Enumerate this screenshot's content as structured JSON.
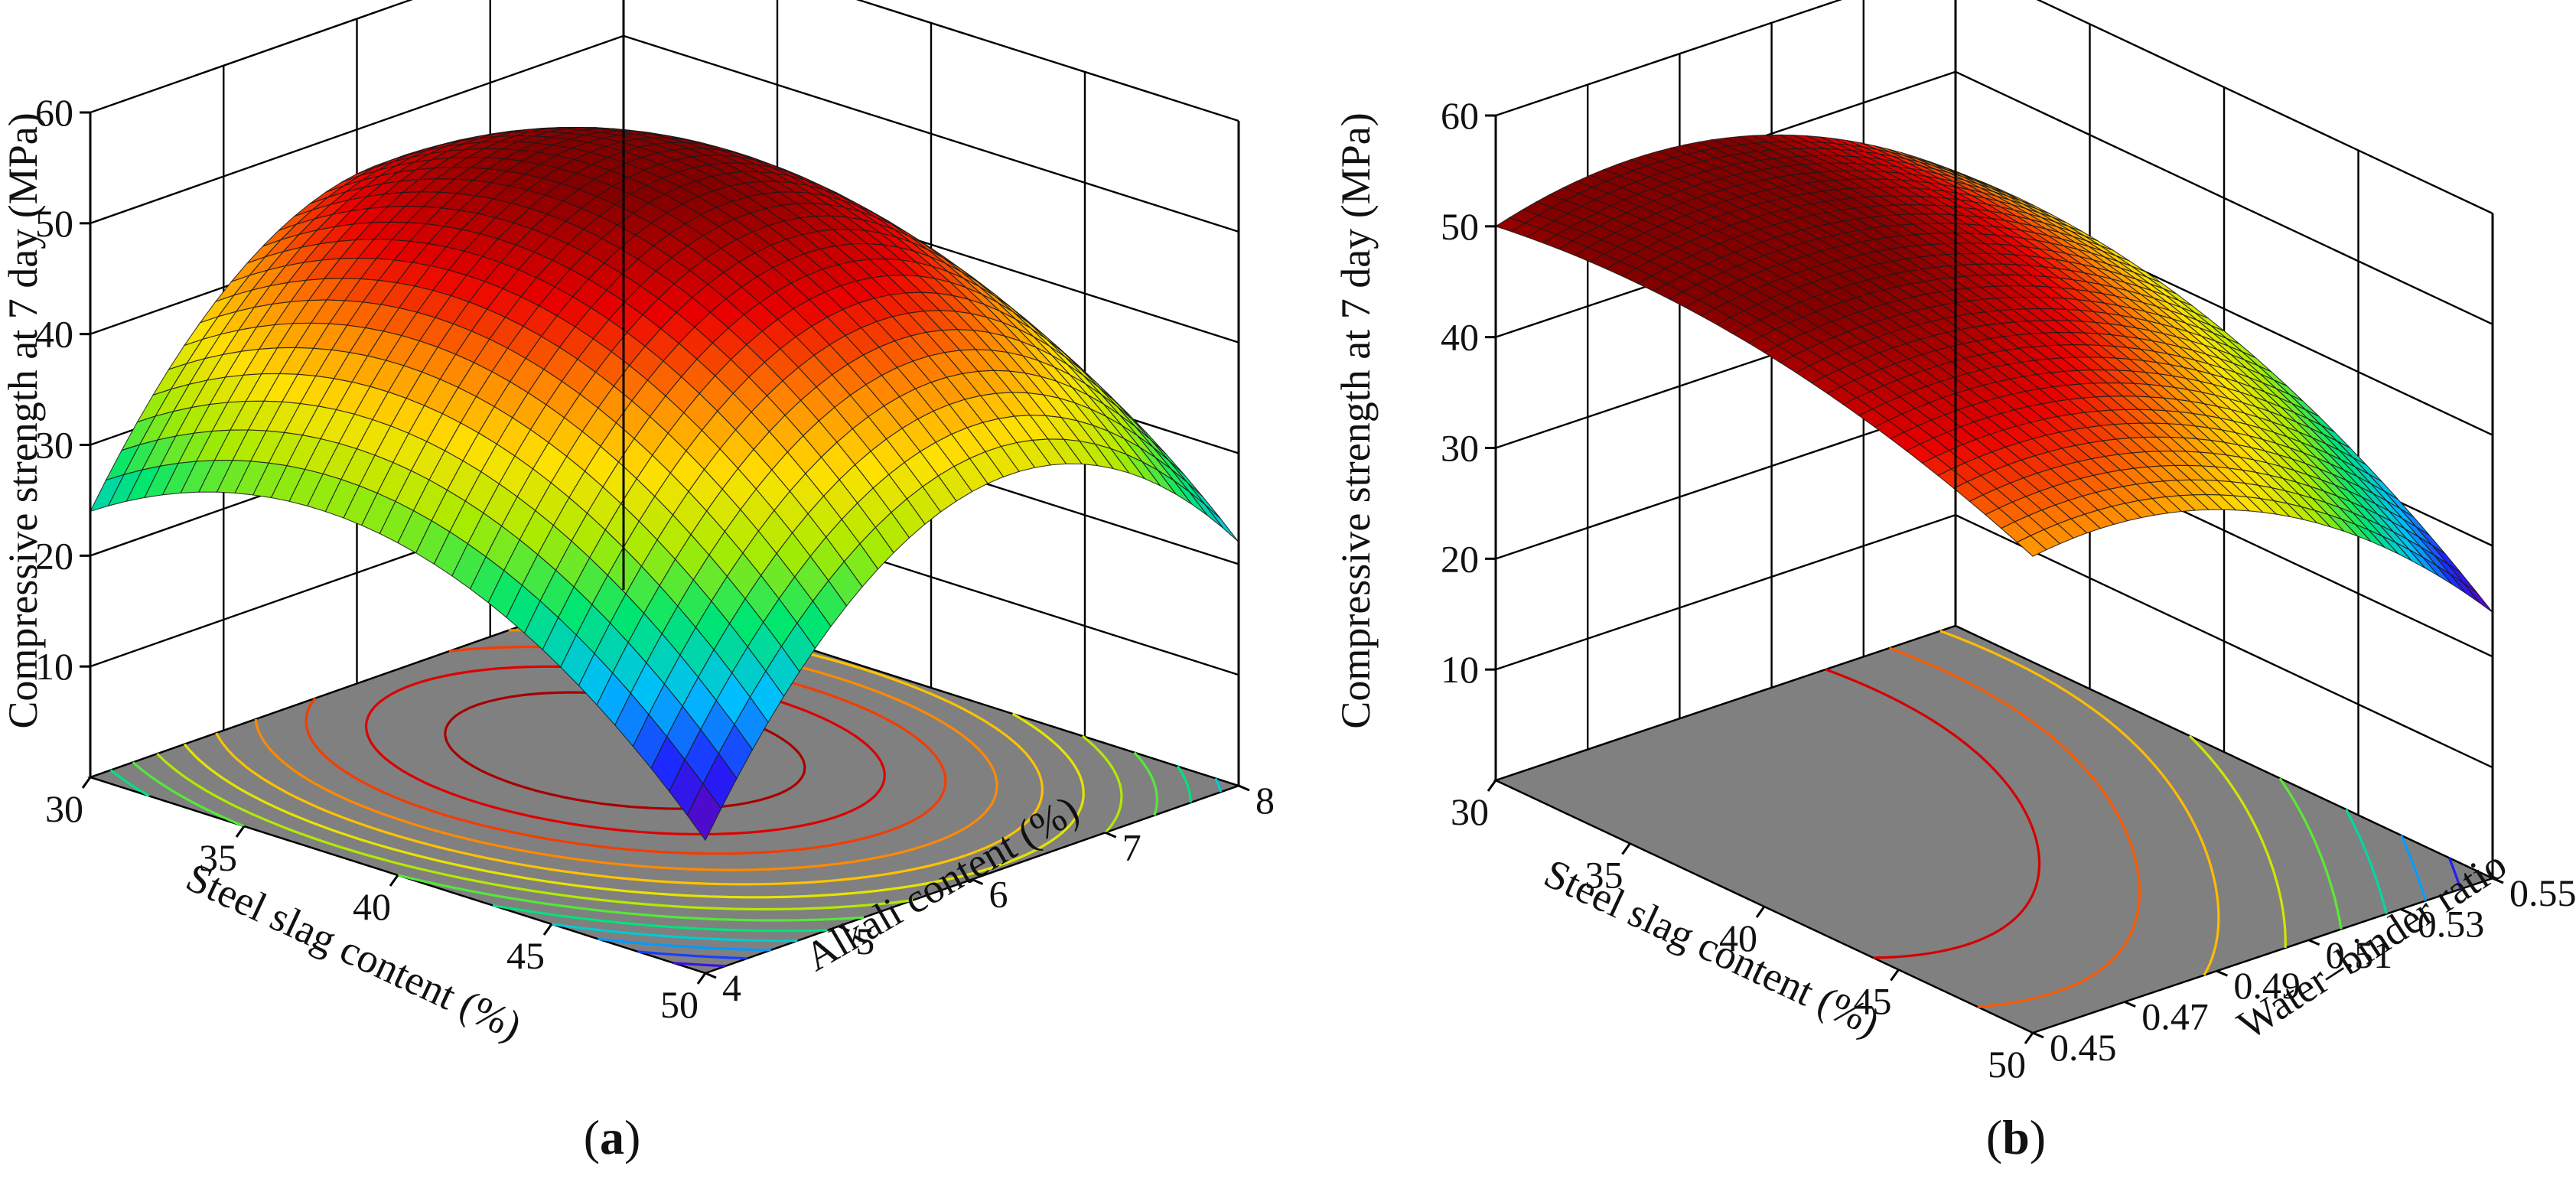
{
  "figure": {
    "panels": [
      "a",
      "b"
    ]
  },
  "chart_data": [
    {
      "type": "surface3d",
      "panel_label": "(a)",
      "panel_letter": "a",
      "zlabel": "Compressive strength at 7 day (MPa)",
      "xlabel": "Steel slag content (%)",
      "ylabel": "Alkali content (%)",
      "x_ticks": [
        "30",
        "35",
        "40",
        "45",
        "50"
      ],
      "y_ticks": [
        "4",
        "5",
        "6",
        "7",
        "8"
      ],
      "z_ticks": [
        "10",
        "20",
        "30",
        "40",
        "50",
        "60"
      ],
      "xlim": [
        30,
        50
      ],
      "ylim": [
        4,
        8
      ],
      "zlim": [
        0,
        60
      ],
      "surface_samples": {
        "x": [
          30,
          40,
          50
        ],
        "y": [
          4,
          6,
          8
        ],
        "z": [
          [
            24,
            46,
            31
          ],
          [
            30,
            53,
            38
          ],
          [
            12,
            35,
            22
          ]
        ]
      },
      "contour_colormap": "jet",
      "floor_color": "#808080"
    },
    {
      "type": "surface3d",
      "panel_label": "(b)",
      "panel_letter": "b",
      "zlabel": "Compressive strength at 7 day (MPa)",
      "xlabel": "Steel slag content (%)",
      "ylabel": "Water–binder ratio",
      "x_ticks": [
        "30",
        "35",
        "40",
        "45",
        "50"
      ],
      "y_ticks": [
        "0.45",
        "0.47",
        "0.49",
        "0.51",
        "0.53",
        "0.55"
      ],
      "z_ticks": [
        "10",
        "20",
        "30",
        "40",
        "50",
        "60"
      ],
      "xlim": [
        30,
        50
      ],
      "ylim": [
        0.45,
        0.55
      ],
      "zlim": [
        0,
        60
      ],
      "surface_samples": {
        "x": [
          30,
          40,
          50
        ],
        "y": [
          0.45,
          0.5,
          0.55
        ],
        "z": [
          [
            50,
            51,
            41
          ],
          [
            50,
            49,
            38
          ],
          [
            43,
            40,
            24
          ]
        ]
      },
      "contour_colormap": "jet",
      "floor_color": "#808080"
    }
  ]
}
